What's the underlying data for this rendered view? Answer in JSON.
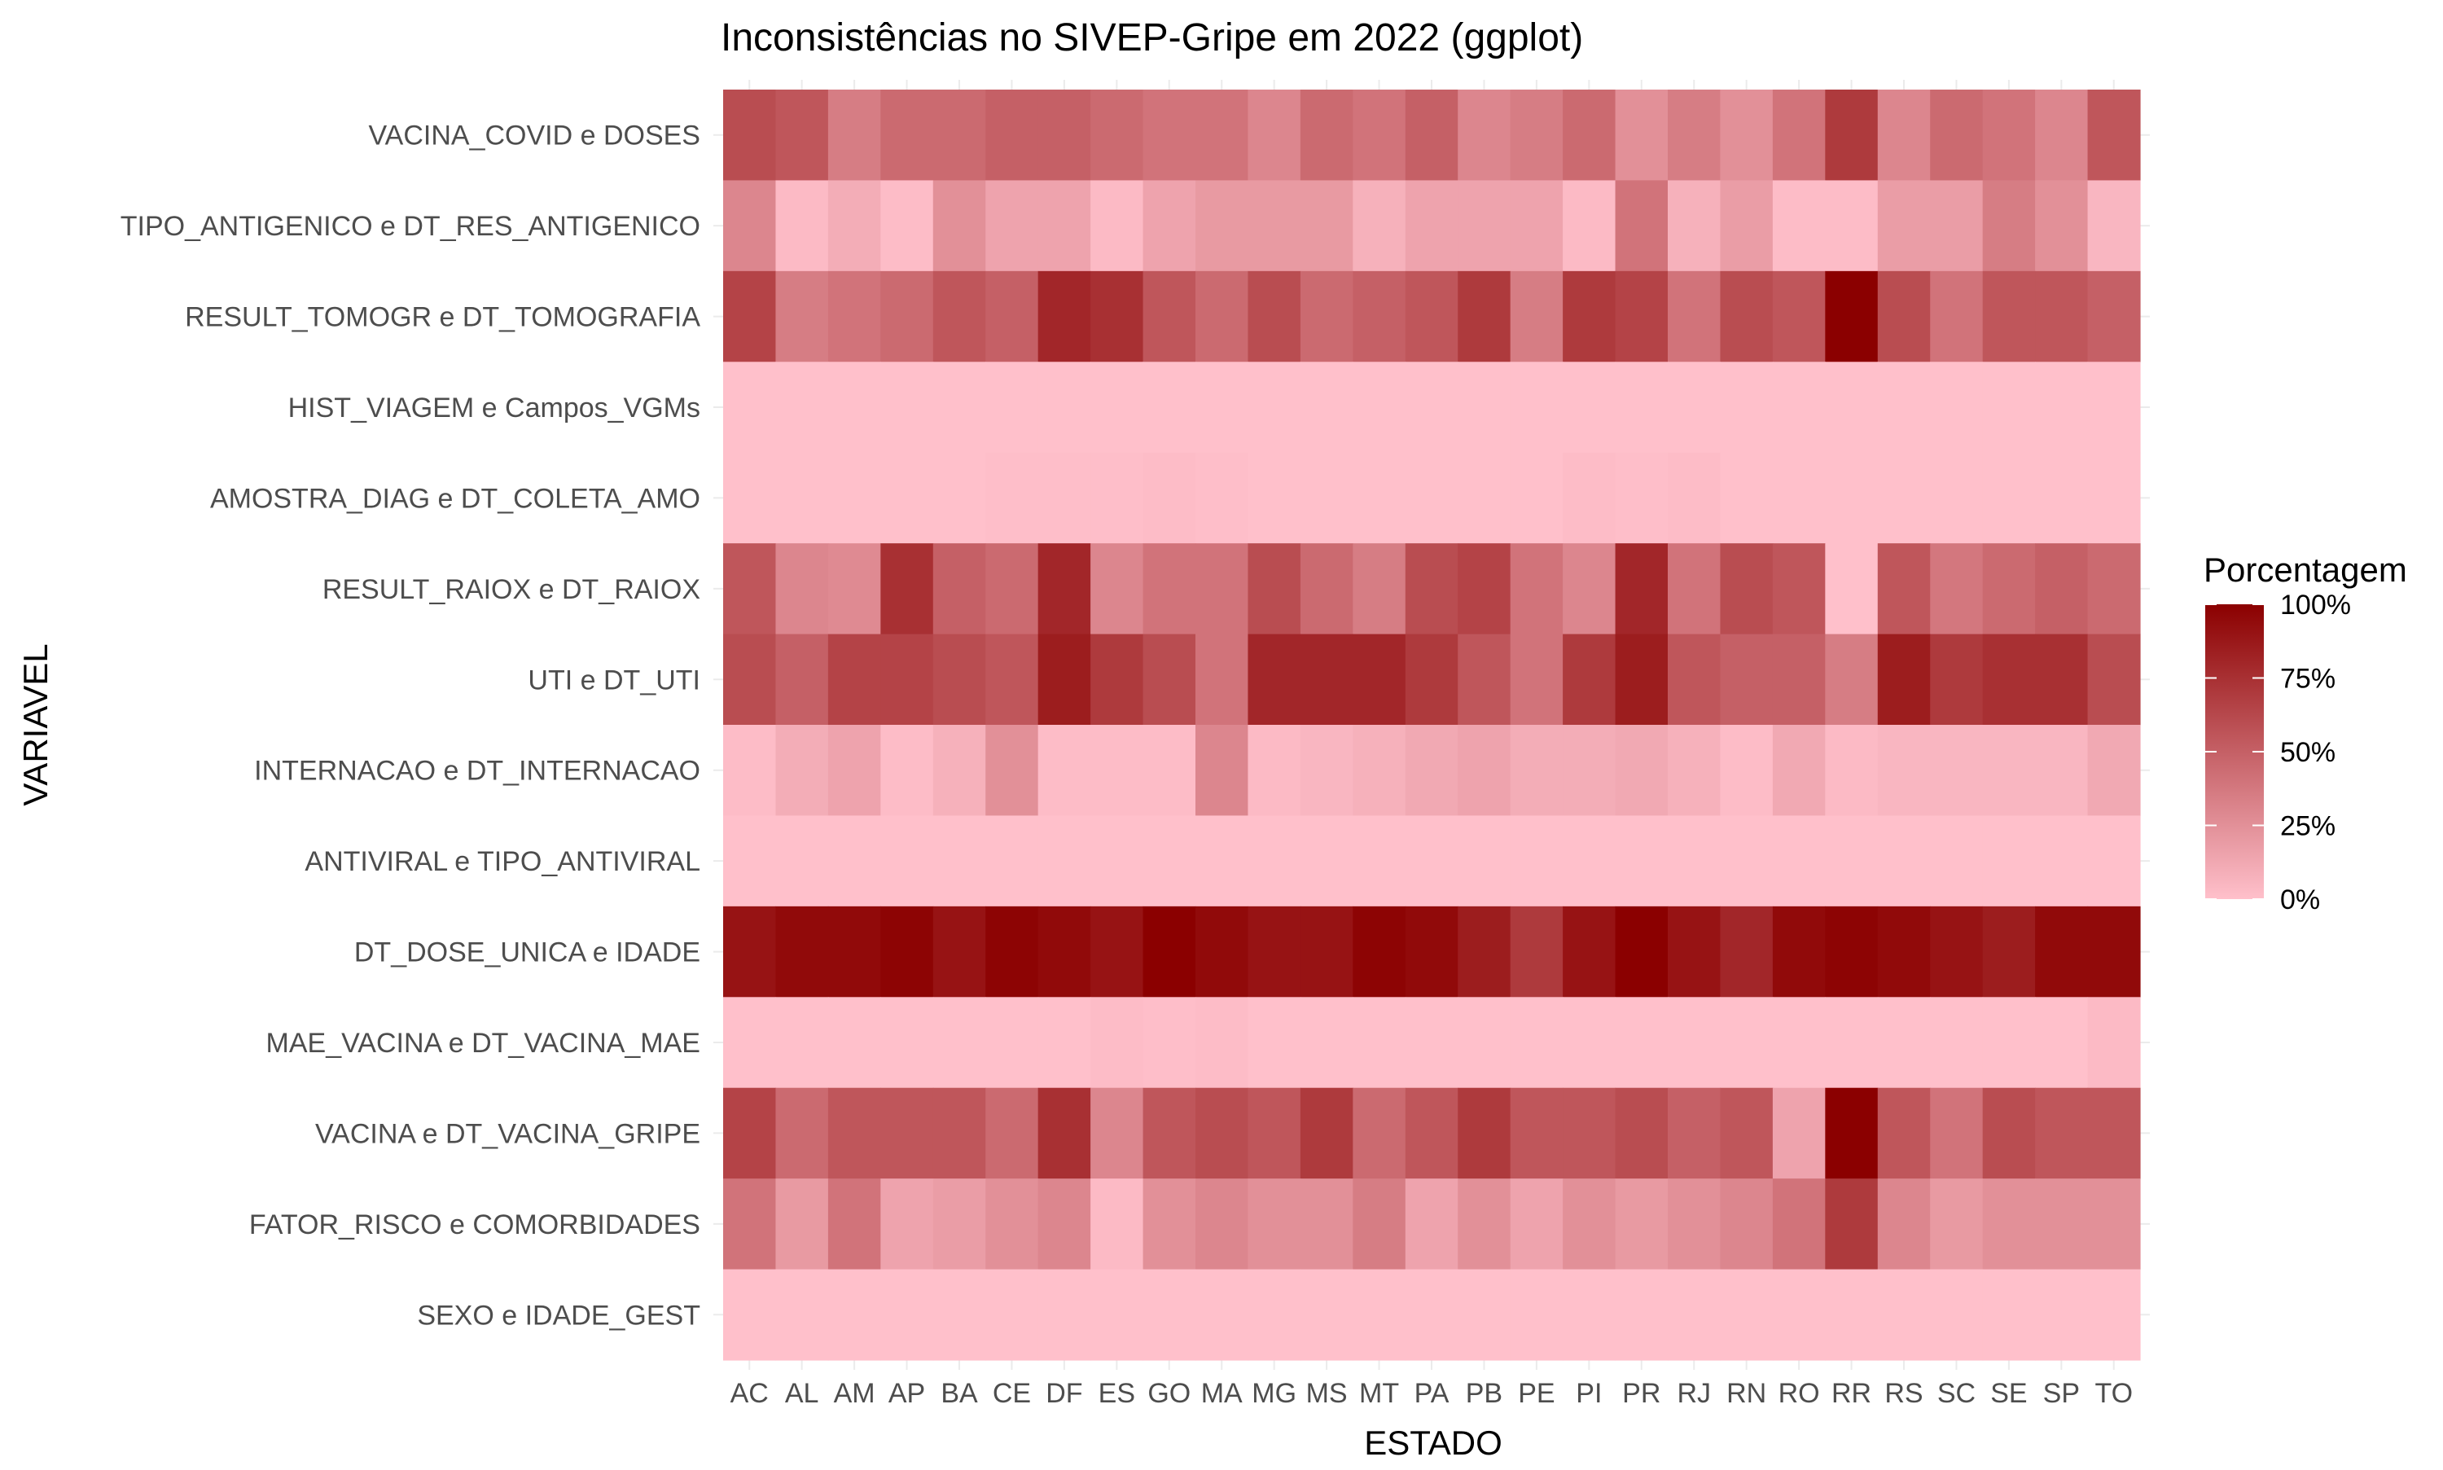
{
  "chart_data": {
    "type": "heatmap",
    "title": "Inconsistências no SIVEP-Gripe em 2022 (ggplot)",
    "xlabel": "ESTADO",
    "ylabel": "VARIAVEL",
    "x_categories": [
      "AC",
      "AL",
      "AM",
      "AP",
      "BA",
      "CE",
      "DF",
      "ES",
      "GO",
      "MA",
      "MG",
      "MS",
      "MT",
      "PA",
      "PB",
      "PE",
      "PI",
      "PR",
      "RJ",
      "RN",
      "RO",
      "RR",
      "RS",
      "SC",
      "SE",
      "SP",
      "TO"
    ],
    "y_categories": [
      "VACINA_COVID e DOSES",
      "TIPO_ANTIGENICO e DT_RES_ANTIGENICO",
      "RESULT_TOMOGR e DT_TOMOGRAFIA",
      "HIST_VIAGEM e Campos_VGMs",
      "AMOSTRA_DIAG e DT_COLETA_AMO",
      "RESULT_RAIOX e DT_RAIOX",
      "UTI e DT_UTI",
      "INTERNACAO e DT_INTERNACAO",
      "ANTIVIRAL e TIPO_ANTIVIRAL",
      "DT_DOSE_UNICA e IDADE",
      "MAE_VACINA e DT_VACINA_MAE",
      "VACINA e DT_VACINA_GRIPE",
      "FATOR_RISCO e COMORBIDADES",
      "SEXO e IDADE_GEST"
    ],
    "values": [
      [
        60,
        55,
        35,
        45,
        45,
        50,
        50,
        45,
        40,
        40,
        30,
        45,
        40,
        50,
        30,
        35,
        45,
        25,
        35,
        25,
        40,
        70,
        30,
        45,
        40,
        30,
        55
      ],
      [
        30,
        3,
        10,
        2,
        25,
        15,
        15,
        3,
        15,
        20,
        20,
        20,
        8,
        15,
        15,
        15,
        3,
        40,
        8,
        18,
        2,
        2,
        18,
        18,
        35,
        25,
        5
      ],
      [
        65,
        35,
        40,
        45,
        55,
        50,
        80,
        75,
        55,
        45,
        60,
        45,
        50,
        55,
        70,
        35,
        70,
        65,
        40,
        60,
        55,
        100,
        60,
        40,
        55,
        55,
        50
      ],
      [
        0,
        0,
        0,
        0,
        0,
        0,
        0,
        0,
        0,
        0,
        0,
        0,
        0,
        0,
        0,
        0,
        0,
        0,
        0,
        0,
        0,
        0,
        0,
        0,
        0,
        0,
        0
      ],
      [
        0,
        0,
        0,
        0,
        0,
        1,
        1,
        1,
        2,
        1,
        0,
        0,
        0,
        0,
        0,
        0,
        2,
        1,
        2,
        0,
        0,
        0,
        0,
        0,
        0,
        0,
        0
      ],
      [
        55,
        30,
        28,
        75,
        50,
        45,
        80,
        30,
        40,
        40,
        60,
        45,
        35,
        60,
        65,
        40,
        30,
        80,
        40,
        60,
        55,
        0,
        55,
        38,
        45,
        50,
        45
      ],
      [
        60,
        50,
        65,
        65,
        60,
        55,
        85,
        70,
        60,
        40,
        80,
        80,
        80,
        70,
        55,
        40,
        70,
        85,
        55,
        50,
        50,
        35,
        85,
        70,
        75,
        75,
        60
      ],
      [
        2,
        10,
        15,
        2,
        8,
        25,
        2,
        2,
        2,
        30,
        3,
        5,
        8,
        12,
        15,
        10,
        10,
        12,
        8,
        2,
        12,
        3,
        5,
        5,
        5,
        5,
        12
      ],
      [
        0,
        0,
        0,
        0,
        0,
        0,
        0,
        0,
        0,
        0,
        0,
        0,
        0,
        0,
        0,
        0,
        0,
        0,
        0,
        0,
        0,
        0,
        0,
        0,
        0,
        0,
        0
      ],
      [
        90,
        95,
        95,
        98,
        90,
        98,
        95,
        90,
        100,
        95,
        90,
        90,
        98,
        95,
        85,
        70,
        90,
        100,
        90,
        80,
        95,
        98,
        95,
        90,
        85,
        95,
        95
      ],
      [
        0,
        0,
        0,
        0,
        0,
        0,
        0,
        2,
        1,
        2,
        0,
        0,
        0,
        0,
        0,
        0,
        0,
        0,
        0,
        0,
        0,
        0,
        0,
        0,
        0,
        0,
        3
      ],
      [
        65,
        45,
        55,
        55,
        55,
        45,
        75,
        30,
        55,
        60,
        55,
        70,
        45,
        55,
        70,
        55,
        55,
        60,
        50,
        55,
        15,
        100,
        55,
        40,
        60,
        55,
        55
      ],
      [
        40,
        20,
        40,
        15,
        18,
        25,
        30,
        3,
        25,
        30,
        25,
        25,
        35,
        15,
        25,
        15,
        25,
        20,
        25,
        30,
        40,
        70,
        30,
        20,
        25,
        25,
        25
      ],
      [
        0,
        0,
        0,
        0,
        0,
        0,
        0,
        0,
        0,
        0,
        0,
        0,
        0,
        0,
        0,
        0,
        0,
        0,
        0,
        0,
        0,
        0,
        0,
        0,
        0,
        0,
        0
      ]
    ],
    "color_scale": {
      "low": "#FFC0CB",
      "high": "#8B0000"
    },
    "legend": {
      "title": "Porcentagem",
      "labels": [
        "0%",
        "25%",
        "50%",
        "75%",
        "100%"
      ],
      "stops": [
        0,
        25,
        50,
        75,
        100
      ],
      "placement": "right"
    },
    "grid": true
  }
}
